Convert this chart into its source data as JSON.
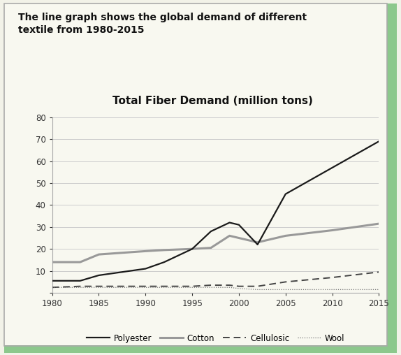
{
  "title_main": "The line graph shows the global demand of different\ntextile from 1980-2015",
  "title_chart": "Total Fiber Demand (million tons)",
  "background_outer": "#f2f2e8",
  "background_inner": "#f2f2e8",
  "border_color_green": "#8cc88c",
  "years": [
    1980,
    1983,
    1985,
    1990,
    1992,
    1995,
    1997,
    1999,
    2000,
    2002,
    2005,
    2010,
    2015
  ],
  "polyester": [
    5.5,
    5.5,
    8.0,
    11.0,
    14.0,
    20.0,
    28.0,
    32.0,
    31.0,
    22.0,
    45.0,
    57.0,
    69.0
  ],
  "cotton": [
    14.0,
    14.0,
    17.5,
    19.0,
    19.5,
    20.0,
    20.5,
    26.0,
    25.0,
    23.0,
    26.0,
    28.5,
    31.5
  ],
  "cellulosic": [
    2.5,
    3.0,
    3.0,
    3.0,
    3.0,
    3.0,
    3.5,
    3.5,
    3.0,
    3.0,
    5.0,
    7.0,
    9.5
  ],
  "wool": [
    2.5,
    2.5,
    2.5,
    2.5,
    2.5,
    2.5,
    2.5,
    2.5,
    2.0,
    1.5,
    1.5,
    1.5,
    1.5
  ],
  "ylim": [
    0,
    80
  ],
  "yticks": [
    0,
    10,
    20,
    30,
    40,
    50,
    60,
    70,
    80
  ],
  "xticks": [
    1980,
    1985,
    1990,
    1995,
    2000,
    2005,
    2010,
    2015
  ],
  "polyester_color": "#1a1a1a",
  "cotton_color": "#999999",
  "cellulosic_color": "#444444",
  "wool_color": "#777777",
  "grid_color": "#cccccc",
  "tick_label_color": "#333333",
  "title_color": "#111111",
  "title_main_fontsize": 10.0,
  "title_chart_fontsize": 11.0,
  "tick_fontsize": 8.5,
  "legend_fontsize": 8.5
}
